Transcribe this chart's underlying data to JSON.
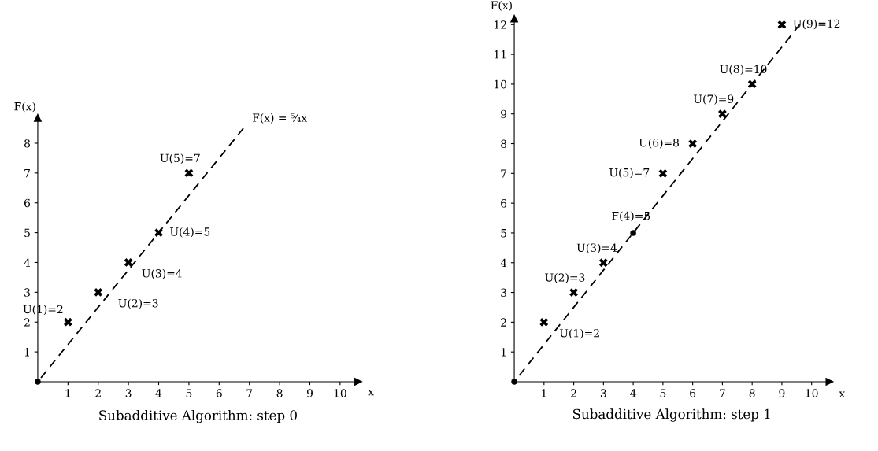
{
  "chart_data": [
    {
      "type": "scatter",
      "title": "Subadditive Algorithm: step 0",
      "xlabel": "x",
      "ylabel": "F(x)",
      "xlim": [
        0,
        10.6
      ],
      "ylim": [
        0,
        8.85
      ],
      "xticks": [
        1,
        2,
        3,
        4,
        5,
        6,
        7,
        8,
        9,
        10
      ],
      "yticks": [
        1,
        2,
        3,
        4,
        5,
        6,
        7,
        8
      ],
      "series": [
        {
          "type": "line",
          "x": [
            0,
            6.8
          ],
          "values": [
            0,
            8.5
          ],
          "color": "#000000",
          "marker": "none",
          "line_style": "dashed"
        },
        {
          "x": [
            1,
            2,
            3,
            4,
            5
          ],
          "values": [
            2,
            3,
            4,
            5,
            7
          ],
          "color": "#000000",
          "marker": "cross"
        },
        {
          "x": [
            0
          ],
          "values": [
            0
          ],
          "color": "#000000",
          "marker": "circle"
        }
      ],
      "annotations": [
        {
          "text": "U(1)=2",
          "x": 1,
          "y": 2
        },
        {
          "text": "U(2)=3",
          "x": 2,
          "y": 3
        },
        {
          "text": "U(3)=4",
          "x": 3,
          "y": 4
        },
        {
          "text": "U(4)=5",
          "x": 4,
          "y": 5
        },
        {
          "text": "U(5)=7",
          "x": 5,
          "y": 7
        },
        {
          "text": "F(x) = ⁵⁄₄x",
          "x": 6.8,
          "y": 8.5
        }
      ]
    },
    {
      "type": "scatter",
      "title": "Subadditive Algorithm: step 1",
      "xlabel": "x",
      "ylabel": "F(x)",
      "xlim": [
        0,
        10.6
      ],
      "ylim": [
        0,
        12.2
      ],
      "xticks": [
        1,
        2,
        3,
        4,
        5,
        6,
        7,
        8,
        9,
        10
      ],
      "yticks": [
        1,
        2,
        3,
        4,
        5,
        6,
        7,
        8,
        9,
        10,
        11,
        12
      ],
      "series": [
        {
          "type": "line",
          "x": [
            0,
            9.6
          ],
          "values": [
            0,
            12
          ],
          "color": "#000000",
          "marker": "none",
          "line_style": "dashed"
        },
        {
          "x": [
            1,
            2,
            3,
            5,
            6,
            7,
            8,
            9
          ],
          "values": [
            2,
            3,
            4,
            7,
            8,
            9,
            10,
            12
          ],
          "color": "#000000",
          "marker": "cross"
        },
        {
          "x": [
            0,
            4
          ],
          "values": [
            0,
            5
          ],
          "color": "#000000",
          "marker": "circle"
        }
      ],
      "annotations": [
        {
          "text": "U(1)=2",
          "x": 1,
          "y": 2
        },
        {
          "text": "U(2)=3",
          "x": 2,
          "y": 3
        },
        {
          "text": "U(3)=4",
          "x": 3,
          "y": 4
        },
        {
          "text": "F(4)=5",
          "x": 4,
          "y": 5
        },
        {
          "text": "U(5)=7",
          "x": 5,
          "y": 7
        },
        {
          "text": "U(6)=8",
          "x": 6,
          "y": 8
        },
        {
          "text": "U(7)=9",
          "x": 7,
          "y": 9
        },
        {
          "text": "U(8)=10",
          "x": 8,
          "y": 10
        },
        {
          "text": "U(9)=12",
          "x": 9,
          "y": 12
        }
      ]
    }
  ]
}
